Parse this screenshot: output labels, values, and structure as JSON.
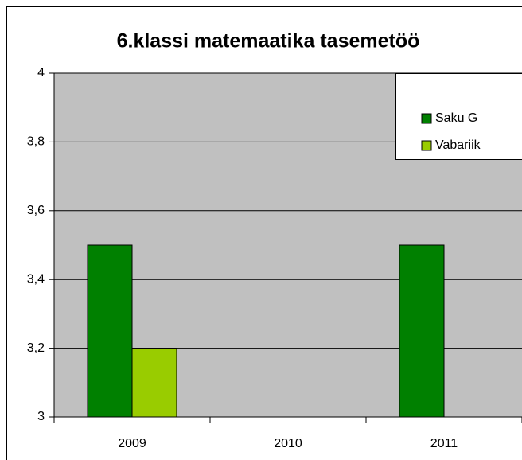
{
  "chart_data": {
    "type": "bar",
    "title": "6.klassi matemaatika tasemetöö",
    "categories": [
      "2009",
      "2010",
      "2011"
    ],
    "series": [
      {
        "name": "Saku G",
        "color": "#008000",
        "values": [
          3.5,
          null,
          3.5
        ]
      },
      {
        "name": "Vabariik",
        "color": "#99cc00",
        "values": [
          3.2,
          null,
          null
        ]
      }
    ],
    "ylim": [
      3,
      4
    ],
    "yticks": [
      3,
      {
        "value": 3.2,
        "label": "3,2"
      },
      {
        "value": 3.4,
        "label": "3,4"
      },
      {
        "value": 3.6,
        "label": "3,6"
      },
      {
        "value": 3.8,
        "label": "3,8"
      },
      4
    ],
    "grid": true,
    "legend": "top-right"
  }
}
